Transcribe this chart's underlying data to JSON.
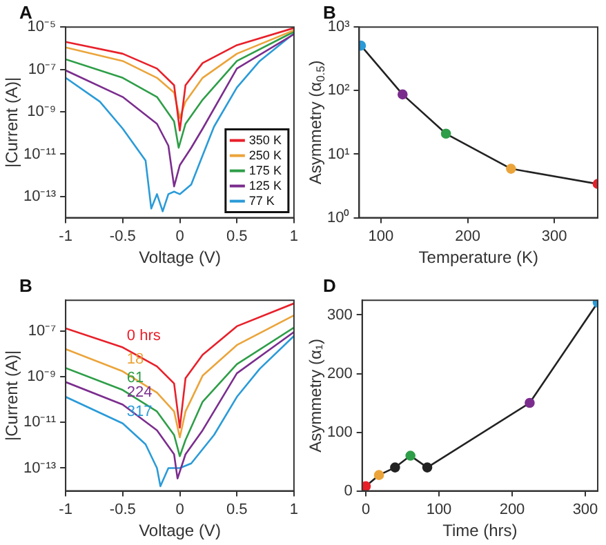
{
  "chart_data": [
    {
      "type": "line",
      "title": "A",
      "xlabel": "Voltage (V)",
      "ylabel": "|Current (A)|",
      "log": "y",
      "legend": "bottom right",
      "marker": "none",
      "xlim": [
        -1,
        1
      ],
      "xticks": [
        -1,
        -0.5,
        0,
        0.5,
        1
      ],
      "ylim": [
        1e-14,
        1e-05
      ],
      "yticks": [
        {
          "value": 1e-05,
          "label": "10⁻⁵"
        },
        {
          "value": 1e-07,
          "label": "10⁻⁷"
        },
        {
          "value": 1e-09,
          "label": "10⁻⁹"
        },
        {
          "value": 1e-11,
          "label": "10⁻¹¹"
        },
        {
          "value": 1e-13,
          "label": "10⁻¹³"
        }
      ],
      "series": [
        {
          "name": "350 K",
          "color": "#e8202a",
          "x": [
            -1,
            -0.5,
            -0.2,
            -0.05,
            0,
            0.05,
            0.2,
            0.5,
            1
          ],
          "values": [
            2e-06,
            5.5e-07,
            1.1e-07,
            1.8e-08,
            1.3e-10,
            1.8e-08,
            2e-07,
            1.4e-06,
            9e-06
          ]
        },
        {
          "name": "250 K",
          "color": "#eba43a",
          "x": [
            -1,
            -0.5,
            -0.2,
            -0.05,
            0,
            0.05,
            0.2,
            0.5,
            1
          ],
          "values": [
            1.1e-06,
            2.5e-07,
            4e-08,
            8e-09,
            5e-10,
            3e-09,
            4e-08,
            5.5e-07,
            7e-06
          ]
        },
        {
          "name": "175 K",
          "color": "#2e9e48",
          "x": [
            -1,
            -0.5,
            -0.2,
            -0.05,
            -0.01,
            0.05,
            0.2,
            0.5,
            1
          ],
          "values": [
            3e-07,
            4e-08,
            5e-09,
            3.5e-10,
            2e-11,
            2.7e-10,
            3.7e-09,
            2.5e-07,
            6e-06
          ]
        },
        {
          "name": "125 K",
          "color": "#7b2d8e",
          "x": [
            -1,
            -0.5,
            -0.2,
            -0.1,
            -0.05,
            0,
            0.1,
            0.2,
            0.5,
            1
          ],
          "values": [
            9e-08,
            5e-09,
            2.7e-10,
            2.5e-11,
            3e-13,
            3e-12,
            2e-11,
            1.6e-10,
            1.1e-07,
            4.6e-06
          ]
        },
        {
          "name": "77 K",
          "color": "#2a9bd8",
          "x": [
            -1,
            -0.7,
            -0.5,
            -0.3,
            -0.25,
            -0.2,
            -0.15,
            -0.1,
            -0.05,
            0,
            0.1,
            0.2,
            0.3,
            0.5,
            0.7,
            1
          ],
          "values": [
            4e-08,
            3e-09,
            1.6e-10,
            5e-12,
            2.7e-14,
            1.3e-13,
            2e-14,
            1.3e-13,
            1.7e-13,
            1.3e-13,
            3.7e-13,
            8.7e-12,
            2e-10,
            1.4e-08,
            2.5e-07,
            5e-06
          ]
        }
      ]
    },
    {
      "type": "line",
      "title": "B",
      "xlabel": "Temperature (K)",
      "ylabel": "Asymmetry (α$_{0.5}$)",
      "log": "y",
      "marker": "circle",
      "xlim": [
        75,
        350
      ],
      "xticks": [
        100,
        200,
        300
      ],
      "ylim": [
        1,
        1000
      ],
      "yticks": [
        {
          "value": 1,
          "label": "10⁰"
        },
        {
          "value": 10,
          "label": "10¹"
        },
        {
          "value": 100,
          "label": "10²"
        },
        {
          "value": 1000,
          "label": "10³"
        }
      ],
      "series": [
        {
          "color": "#222222",
          "colors": [
            "#2a9bd8",
            "#7b2d8e",
            "#2e9e48",
            "#eba43a",
            "#e8202a"
          ],
          "x": [
            77,
            125,
            175,
            250,
            350
          ],
          "values": [
            510,
            87,
            21,
            5.9,
            3.4
          ]
        }
      ]
    },
    {
      "type": "line",
      "title": "B",
      "xlabel": "Voltage (V)",
      "ylabel": "|Current (A)|",
      "log": "y",
      "marker": "none",
      "xlim": [
        -1,
        1
      ],
      "xticks": [
        -1,
        -0.5,
        0,
        0.5,
        1
      ],
      "ylim": [
        1e-14,
        2.2e-06
      ],
      "yticks": [
        {
          "value": 1e-07,
          "label": "10⁻⁷"
        },
        {
          "value": 1e-09,
          "label": "10⁻⁹"
        },
        {
          "value": 1e-11,
          "label": "10⁻¹¹"
        },
        {
          "value": 1e-13,
          "label": "10⁻¹³"
        }
      ],
      "series": [
        {
          "name": "0 hrs",
          "color": "#e8202a",
          "x": [
            -1,
            -0.5,
            -0.2,
            -0.05,
            0,
            0.05,
            0.2,
            0.5,
            1
          ],
          "values": [
            1.3e-07,
            1.9e-08,
            2.8e-09,
            5e-10,
            5.8e-12,
            8.5e-10,
            9e-09,
            1.6e-07,
            1.6e-06
          ]
        },
        {
          "name": "18",
          "color": "#eba43a",
          "x": [
            -1,
            -0.5,
            -0.2,
            -0.05,
            0,
            0.05,
            0.2,
            0.5,
            1
          ],
          "values": [
            1.6e-08,
            1.7e-09,
            2e-10,
            3e-11,
            2.2e-12,
            3e-11,
            1.1e-09,
            2.4e-08,
            4.8e-07
          ]
        },
        {
          "name": "61",
          "color": "#2e9e48",
          "x": [
            -1,
            -0.5,
            -0.2,
            -0.05,
            0,
            0.05,
            0.2,
            0.5,
            1
          ],
          "values": [
            2.4e-09,
            2.6e-10,
            3e-11,
            2.8e-12,
            3.3e-13,
            1.7e-12,
            8e-11,
            3.5e-09,
            1.4e-07
          ]
        },
        {
          "name": "224",
          "color": "#7b2d8e",
          "x": [
            -1,
            -0.5,
            -0.2,
            -0.05,
            -0.02,
            0.05,
            0.2,
            0.5,
            1
          ],
          "values": [
            5.8e-10,
            6e-11,
            4.5e-12,
            4e-13,
            3.5e-14,
            4e-13,
            4.5e-12,
            1.4e-09,
            9e-08
          ]
        },
        {
          "name": "317",
          "color": "#2a9bd8",
          "x": [
            -1,
            -0.5,
            -0.3,
            -0.2,
            -0.17,
            -0.1,
            0,
            0.1,
            0.3,
            0.5,
            0.7,
            1
          ],
          "values": [
            1.3e-10,
            9e-12,
            1.1e-12,
            1e-13,
            1.6e-14,
            1e-13,
            1e-13,
            1.6e-13,
            2.8e-12,
            1.3e-10,
            2.2e-09,
            6e-08
          ]
        }
      ]
    },
    {
      "type": "line",
      "title": "D",
      "xlabel": "Time (hrs)",
      "ylabel": "Asymmetry (α₁)",
      "marker": "circle",
      "xlim": [
        -5,
        317
      ],
      "xticks": [
        0,
        100,
        200,
        300
      ],
      "ylim": [
        0,
        325
      ],
      "yticks": [
        0,
        100,
        200,
        300
      ],
      "series": [
        {
          "color": "#222222",
          "colors": [
            "#e8202a",
            "#eba43a",
            "#222222",
            "#2e9e48",
            "#222222",
            "#7b2d8e",
            "#2a9bd8"
          ],
          "x": [
            0,
            18,
            40,
            61,
            84,
            224,
            317
          ],
          "values": [
            8,
            27,
            40,
            60,
            40,
            150,
            321
          ]
        }
      ]
    }
  ]
}
